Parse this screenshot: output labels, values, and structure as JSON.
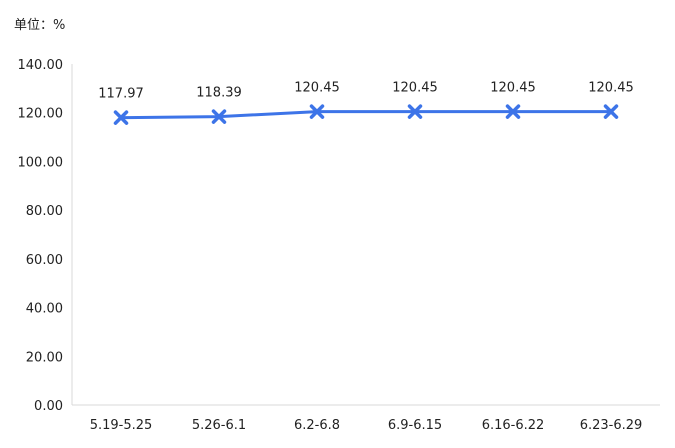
{
  "chart_data": {
    "type": "line",
    "unit_label": "单位：%",
    "categories": [
      "5.19-5.25",
      "5.26-6.1",
      "6.2-6.8",
      "6.9-6.15",
      "6.16-6.22",
      "6.23-6.29"
    ],
    "values": [
      117.97,
      118.39,
      120.45,
      120.45,
      120.45,
      120.45
    ],
    "value_labels": [
      "117.97",
      "118.39",
      "120.45",
      "120.45",
      "120.45",
      "120.45"
    ],
    "y_ticks": [
      "0.00",
      "20.00",
      "40.00",
      "60.00",
      "80.00",
      "100.00",
      "120.00",
      "140.00"
    ],
    "ylim": [
      0,
      140
    ],
    "grid": false,
    "legend": "none",
    "marker": "x",
    "line_color": "#3d74e8",
    "axis_color": "#d9d9d9"
  }
}
